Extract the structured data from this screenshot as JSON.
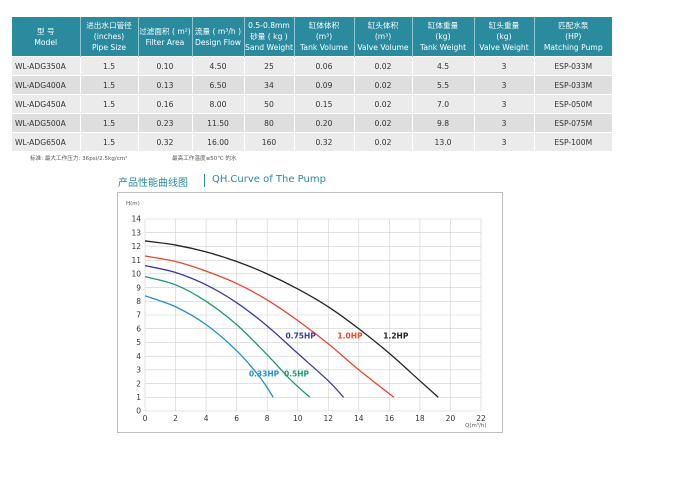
{
  "table": {
    "headers": [
      {
        "zh": "型 号",
        "en": "Model"
      },
      {
        "zh": "进出水口管径",
        "en": "(inches)",
        "en2": "Pipe Size"
      },
      {
        "zh": "过滤面积 ( m²)",
        "en": "Filter Area"
      },
      {
        "zh": "流量 ( m³/h )",
        "en": "Design Flow"
      },
      {
        "zh": "0.5-0.8mm",
        "en": "砂量 ( kg )",
        "en2": "Sand Weight"
      },
      {
        "zh": "缸体体积",
        "en": "(m³)",
        "en2": "Tank Volume"
      },
      {
        "zh": "缸头体积",
        "en": "(m³)",
        "en2": "Valve Volume"
      },
      {
        "zh": "缸体重量",
        "en": "(kg)",
        "en2": "Tank Weight"
      },
      {
        "zh": "缸头重量",
        "en": "(kg)",
        "en2": "Valve Weight"
      },
      {
        "zh": "匹配水泵",
        "en": "(HP)",
        "en2": "Matching Pump"
      }
    ],
    "rows": [
      [
        "WL-ADG350A",
        "1.5",
        "0.10",
        "4.50",
        "25",
        "0.06",
        "0.02",
        "4.5",
        "3",
        "ESP-033M"
      ],
      [
        "WL-ADG400A",
        "1.5",
        "0.13",
        "6.50",
        "34",
        "0.09",
        "0.02",
        "5.5",
        "3",
        "ESP-033M"
      ],
      [
        "WL-ADG450A",
        "1.5",
        "0.16",
        "8.00",
        "50",
        "0.15",
        "0.02",
        "7.0",
        "3",
        "ESP-050M"
      ],
      [
        "WL-ADG500A",
        "1.5",
        "0.23",
        "11.50",
        "80",
        "0.20",
        "0.02",
        "9.8",
        "3",
        "ESP-075M"
      ],
      [
        "WL-ADG650A",
        "1.5",
        "0.32",
        "16.00",
        "160",
        "0.32",
        "0.02",
        "13.0",
        "3",
        "ESP-100M"
      ]
    ]
  },
  "notes": {
    "left": "标准: 最大工作压力: 36psi/2.5kg/cm²",
    "right": "最高工作温度≤50℃ 的水"
  },
  "chart_title": {
    "zh": "产品性能曲线图",
    "en": "QH.Curve of The Pump"
  },
  "chart_data": {
    "type": "line",
    "ylabel": "H(m)",
    "xlabel": "Q(m³/h)",
    "xlim": [
      0,
      22
    ],
    "ylim": [
      0,
      14
    ],
    "xticks": [
      0,
      2,
      4,
      6,
      8,
      10,
      12,
      14,
      16,
      18,
      20,
      22
    ],
    "yticks": [
      0,
      1,
      2,
      3,
      4,
      5,
      6,
      7,
      8,
      9,
      10,
      11,
      12,
      13,
      14
    ],
    "grid": true,
    "series": [
      {
        "name": "0.33HP",
        "color": "#1f8fd0",
        "points": [
          [
            0,
            8.4
          ],
          [
            2,
            7.6
          ],
          [
            4,
            6.3
          ],
          [
            6,
            4.4
          ],
          [
            7.5,
            2.5
          ],
          [
            8.4,
            1.0
          ]
        ],
        "label_at": [
          6.8,
          2.5
        ]
      },
      {
        "name": "0.5HP",
        "color": "#1a9b6e",
        "points": [
          [
            0,
            9.8
          ],
          [
            2,
            9.2
          ],
          [
            4,
            8.0
          ],
          [
            6,
            6.3
          ],
          [
            8,
            4.1
          ],
          [
            9.6,
            2.2
          ],
          [
            10.8,
            1.0
          ]
        ],
        "label_at": [
          9.1,
          2.5
        ]
      },
      {
        "name": "0.75HP",
        "color": "#3a3aa0",
        "points": [
          [
            0,
            10.6
          ],
          [
            2,
            10.1
          ],
          [
            4,
            9.2
          ],
          [
            6,
            7.9
          ],
          [
            8,
            6.2
          ],
          [
            10,
            4.2
          ],
          [
            12,
            2.2
          ],
          [
            13.0,
            1.0
          ]
        ],
        "label_at": [
          9.2,
          5.3
        ]
      },
      {
        "name": "1.0HP",
        "color": "#e8452c",
        "points": [
          [
            0,
            11.3
          ],
          [
            2,
            10.9
          ],
          [
            4,
            10.2
          ],
          [
            6,
            9.3
          ],
          [
            8,
            8.1
          ],
          [
            10,
            6.6
          ],
          [
            12,
            4.9
          ],
          [
            14,
            3.0
          ],
          [
            16.3,
            1.0
          ]
        ],
        "label_at": [
          12.6,
          5.3
        ]
      },
      {
        "name": "1.2HP",
        "color": "#222222",
        "points": [
          [
            0,
            12.4
          ],
          [
            2,
            12.1
          ],
          [
            4,
            11.6
          ],
          [
            6,
            10.9
          ],
          [
            8,
            10.0
          ],
          [
            10,
            8.9
          ],
          [
            12,
            7.6
          ],
          [
            14,
            6.0
          ],
          [
            16,
            4.2
          ],
          [
            18,
            2.2
          ],
          [
            19.2,
            1.0
          ]
        ],
        "label_at": [
          15.6,
          5.3
        ]
      }
    ]
  }
}
